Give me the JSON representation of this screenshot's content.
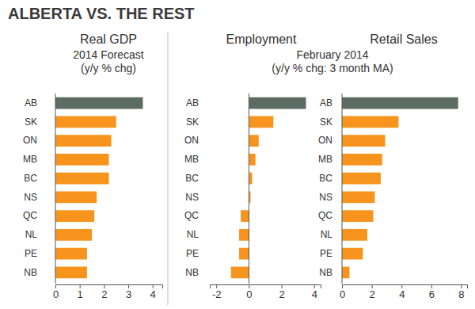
{
  "title": "ALBERTA VS. THE REST",
  "chart_data": [
    {
      "type": "bar",
      "orientation": "horizontal",
      "title": "Real GDP",
      "subtitle": [
        "2014 Forecast",
        "(y/y % chg)"
      ],
      "categories": [
        "AB",
        "SK",
        "ON",
        "MB",
        "BC",
        "NS",
        "QC",
        "NL",
        "PE",
        "NB"
      ],
      "values": [
        3.6,
        2.5,
        2.3,
        2.2,
        2.2,
        1.7,
        1.6,
        1.5,
        1.3,
        1.3
      ],
      "colors": [
        "#5c6b63",
        "#f7941d",
        "#f7941d",
        "#f7941d",
        "#f7941d",
        "#f7941d",
        "#f7941d",
        "#f7941d",
        "#f7941d",
        "#f7941d"
      ],
      "xlim": [
        0,
        4.4
      ],
      "xticks": [
        0,
        1,
        2,
        3,
        4
      ]
    },
    {
      "type": "bar",
      "orientation": "horizontal",
      "title": "Employment",
      "subtitle": [
        "February 2014",
        "(y/y % chg: 3 month MA)"
      ],
      "categories": [
        "AB",
        "SK",
        "ON",
        "MB",
        "BC",
        "NS",
        "QC",
        "NL",
        "PE",
        "NB"
      ],
      "values": [
        3.5,
        1.5,
        0.6,
        0.4,
        0.2,
        0.1,
        -0.5,
        -0.6,
        -0.6,
        -1.1
      ],
      "colors": [
        "#5c6b63",
        "#f7941d",
        "#f7941d",
        "#f7941d",
        "#f7941d",
        "#f7941d",
        "#f7941d",
        "#f7941d",
        "#f7941d",
        "#f7941d"
      ],
      "xlim": [
        -2.4,
        4.4
      ],
      "xticks": [
        -2,
        0,
        2,
        4
      ]
    },
    {
      "type": "bar",
      "orientation": "horizontal",
      "title": "Retail Sales",
      "categories": [
        "AB",
        "SK",
        "ON",
        "MB",
        "BC",
        "NS",
        "QC",
        "NL",
        "PE",
        "NB"
      ],
      "values": [
        7.8,
        3.8,
        2.9,
        2.7,
        2.6,
        2.2,
        2.1,
        1.7,
        1.4,
        0.5
      ],
      "colors": [
        "#5c6b63",
        "#f7941d",
        "#f7941d",
        "#f7941d",
        "#f7941d",
        "#f7941d",
        "#f7941d",
        "#f7941d",
        "#f7941d",
        "#f7941d"
      ],
      "xlim": [
        0,
        8.4
      ],
      "xticks": [
        0,
        2,
        4,
        6,
        8
      ]
    }
  ]
}
